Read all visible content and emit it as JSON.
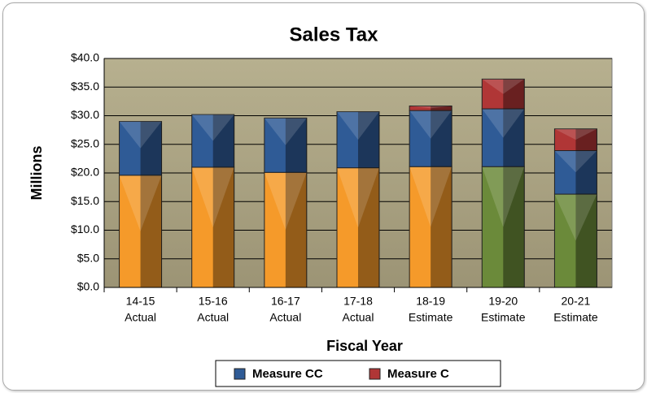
{
  "chart_data": {
    "type": "stacked-bar",
    "title": "Sales Tax",
    "x_label": "Fiscal Year",
    "y_label": "Millions",
    "categories": [
      [
        "14-15",
        "Actual"
      ],
      [
        "15-16",
        "Actual"
      ],
      [
        "16-17",
        "Actual"
      ],
      [
        "17-18",
        "Actual"
      ],
      [
        "18-19",
        "Estimate"
      ],
      [
        "19-20",
        "Estimate"
      ],
      [
        "20-21",
        "Estimate"
      ]
    ],
    "series": [
      {
        "colors": [
          "#f59a2a",
          "#f59a2a",
          "#f59a2a",
          "#f59a2a",
          "#f59a2a",
          "#6b8a3a",
          "#6b8a3a"
        ],
        "values": [
          19.6,
          21.0,
          20.1,
          20.9,
          21.1,
          21.1,
          16.3
        ]
      },
      {
        "name": "Measure CC",
        "color": "#2f5b96",
        "values": [
          9.4,
          9.2,
          9.5,
          9.8,
          9.8,
          10.1,
          7.6
        ]
      },
      {
        "name": "Measure C",
        "color": "#b03636",
        "values": [
          null,
          null,
          null,
          null,
          0.8,
          5.2,
          3.8
        ]
      }
    ],
    "ylim": [
      0,
      40
    ],
    "yticks": [
      {
        "value": 0,
        "label": "$0.0"
      },
      {
        "value": 5,
        "label": "$5.0"
      },
      {
        "value": 10,
        "label": "$10.0"
      },
      {
        "value": 15,
        "label": "$15.0"
      },
      {
        "value": 20,
        "label": "$20.0"
      },
      {
        "value": 25,
        "label": "$25.0"
      },
      {
        "value": 30,
        "label": "$30.0"
      },
      {
        "value": 35,
        "label": "$35.0"
      },
      {
        "value": 40,
        "label": "$40.0"
      }
    ],
    "grid": true
  }
}
